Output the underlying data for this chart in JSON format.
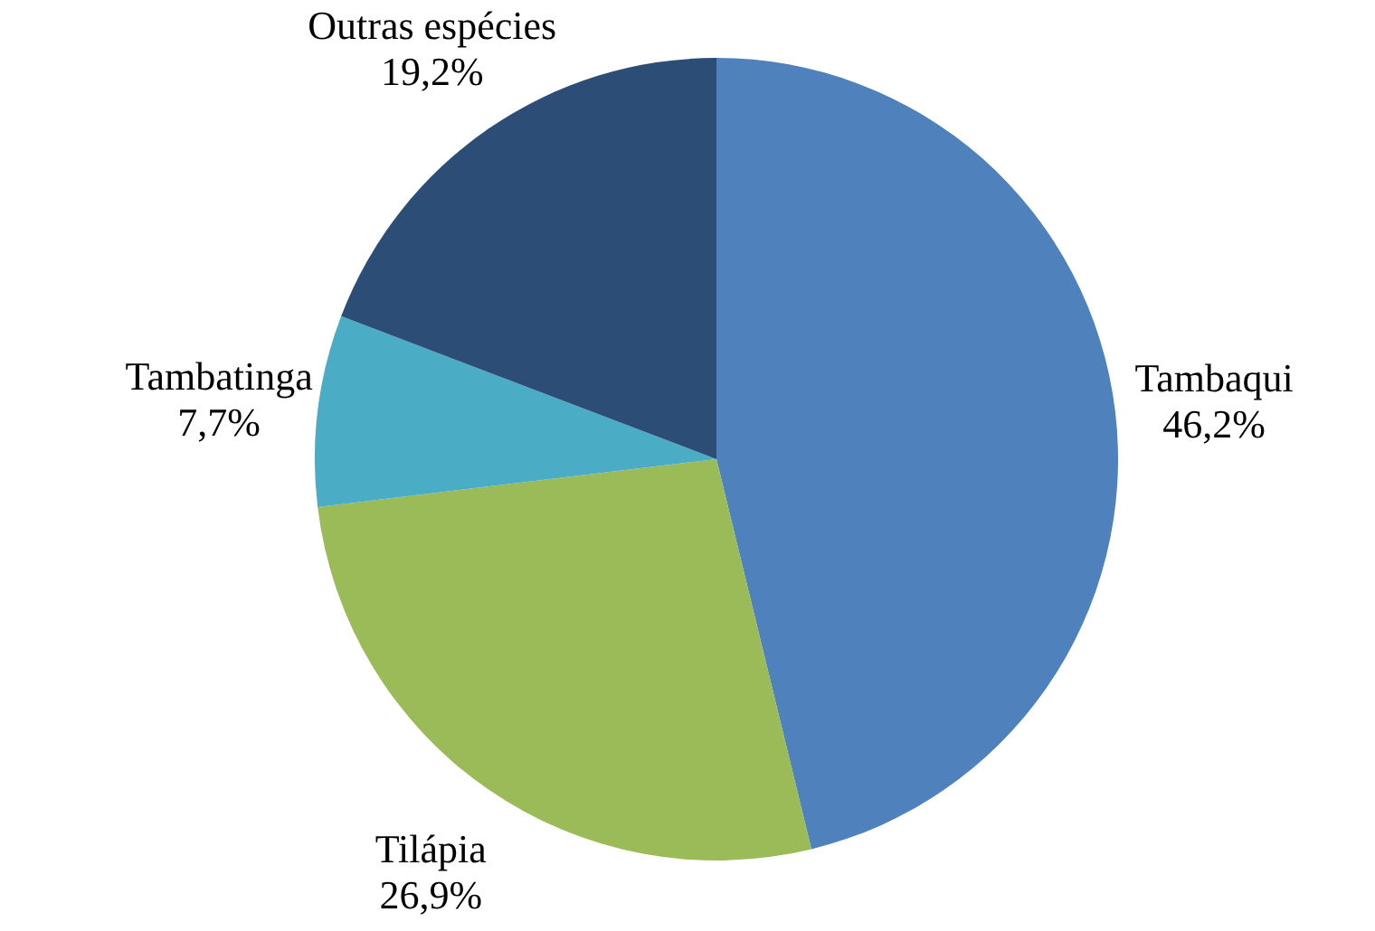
{
  "chart_data": {
    "type": "pie",
    "categories": [
      "Tambaqui",
      "Tilápia",
      "Tambatinga",
      "Outras espécies"
    ],
    "values": [
      46.2,
      26.9,
      7.7,
      19.2
    ],
    "value_labels": [
      "46,2%",
      "26,9%",
      "7,7%",
      "19,2%"
    ],
    "colors": [
      "#4f81bd",
      "#9bbb59",
      "#4bacc6",
      "#2c4d75"
    ],
    "legend": false
  }
}
